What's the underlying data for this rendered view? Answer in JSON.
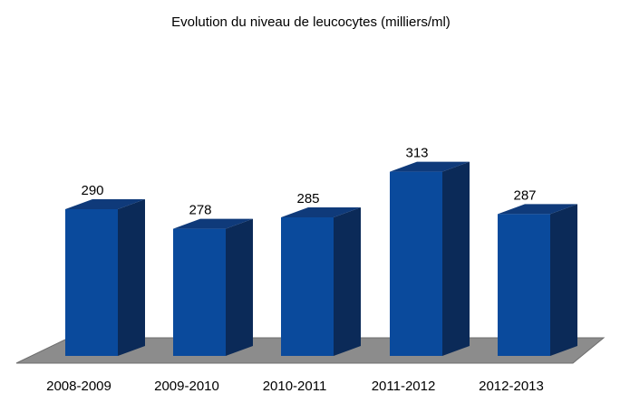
{
  "chart_data": {
    "type": "bar",
    "title": "Evolution du niveau de leucocytes (milliers/ml)",
    "categories": [
      "2008-2009",
      "2009-2010",
      "2010-2011",
      "2011-2012",
      "2012-2013"
    ],
    "values": [
      290,
      278,
      285,
      313,
      287
    ],
    "data_labels": [
      "290",
      "278",
      "285",
      "313",
      "287"
    ],
    "xlabel": "",
    "ylabel": "",
    "grid": false,
    "legend": "none",
    "style": "3d",
    "colors": {
      "bar_front": "#0a4a9c",
      "bar_side": "#0b2a58",
      "bar_top": "#0f3a7a",
      "floor": "#8c8c8c",
      "floor_edge": "#6e6e6e"
    }
  }
}
